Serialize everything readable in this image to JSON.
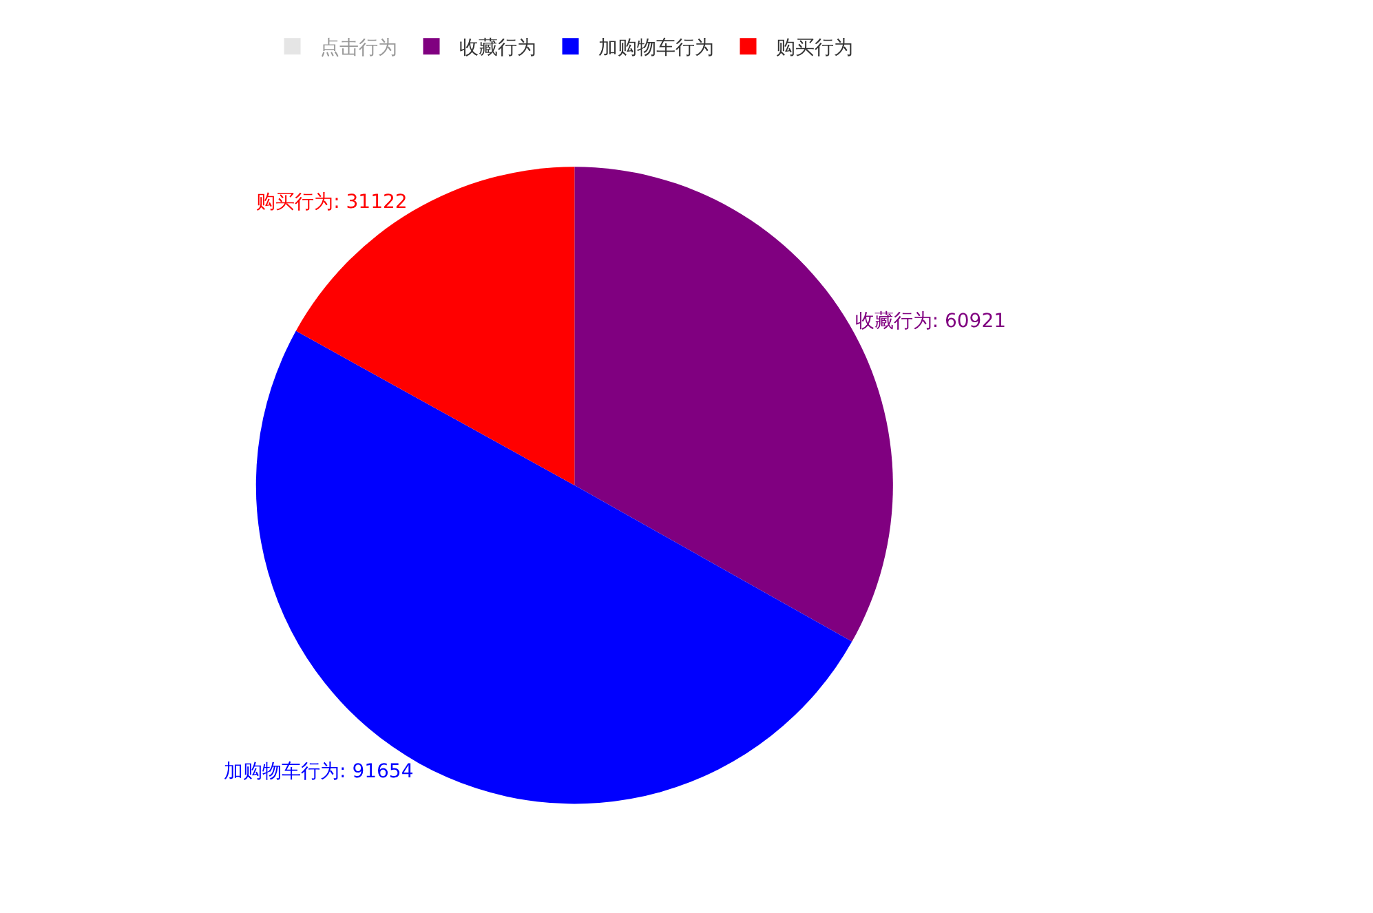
{
  "chart_data": {
    "type": "pie",
    "categories": [
      "点击行为",
      "收藏行为",
      "加购物车行为",
      "购买行为"
    ],
    "values": [
      null,
      60921,
      91654,
      31122
    ],
    "value_labels": [
      null,
      "收藏行为: 60921",
      "加购物车行为: 91654",
      "购买行为: 31122"
    ],
    "colors": [
      "#cccccc",
      "#800080",
      "#0000ff",
      "#ff0000"
    ],
    "legend": "top"
  }
}
